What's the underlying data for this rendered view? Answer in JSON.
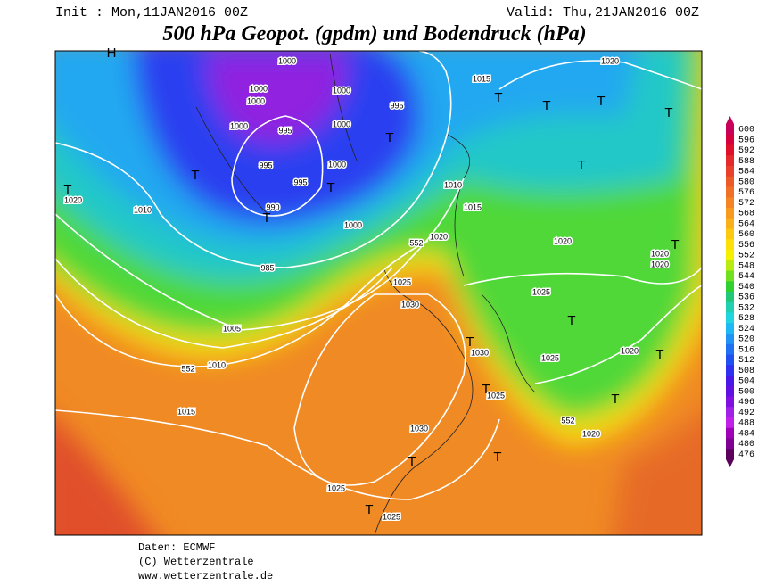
{
  "header": {
    "init": "Init : Mon,11JAN2016 00Z",
    "valid": "Valid: Thu,21JAN2016 00Z",
    "title": "500 hPa Geopot. (gpdm) und Bodendruck (hPa)"
  },
  "colorbar": {
    "levels": [
      600,
      596,
      592,
      588,
      584,
      580,
      576,
      572,
      568,
      564,
      560,
      556,
      552,
      548,
      544,
      540,
      536,
      532,
      528,
      524,
      520,
      516,
      512,
      508,
      504,
      500,
      496,
      492,
      488,
      484,
      480,
      476
    ],
    "colors": [
      "#c8005a",
      "#d8003c",
      "#e0102a",
      "#e42a2a",
      "#e8402a",
      "#ec5a28",
      "#f07028",
      "#f48424",
      "#f89a20",
      "#fab018",
      "#fcc810",
      "#fce008",
      "#f4f000",
      "#b8ec10",
      "#70e020",
      "#30d030",
      "#20c878",
      "#20d0b0",
      "#20d4e0",
      "#20b8f4",
      "#2094f4",
      "#2070f4",
      "#2050f0",
      "#3030f0",
      "#4818e8",
      "#6010e0",
      "#8010e0",
      "#a020e8",
      "#c020e8",
      "#a000b8",
      "#800094",
      "#5c005c"
    ]
  },
  "map_labels": [
    "1000",
    "1000",
    "1000",
    "1000",
    "995",
    "995",
    "1000",
    "1000",
    "1000",
    "995",
    "995",
    "990",
    "1000",
    "985",
    "1005",
    "1010",
    "1015",
    "1020",
    "1010",
    "1015",
    "1020",
    "1010",
    "1015",
    "1020",
    "1020",
    "1020",
    "1020",
    "1025",
    "1030",
    "1025",
    "1025",
    "1030",
    "1020",
    "1025",
    "1020",
    "1030",
    "1025",
    "1025",
    "552",
    "552",
    "552",
    "T",
    "T",
    "T",
    "T",
    "T",
    "T",
    "T",
    "T",
    "T",
    "T",
    "T",
    "T",
    "T",
    "T",
    "T",
    "T",
    "T",
    "T",
    "T",
    "H"
  ],
  "footer": {
    "source": "Daten: ECMWF",
    "copyright": "(C) Wetterzentrale",
    "url": "www.wetterzentrale.de"
  }
}
